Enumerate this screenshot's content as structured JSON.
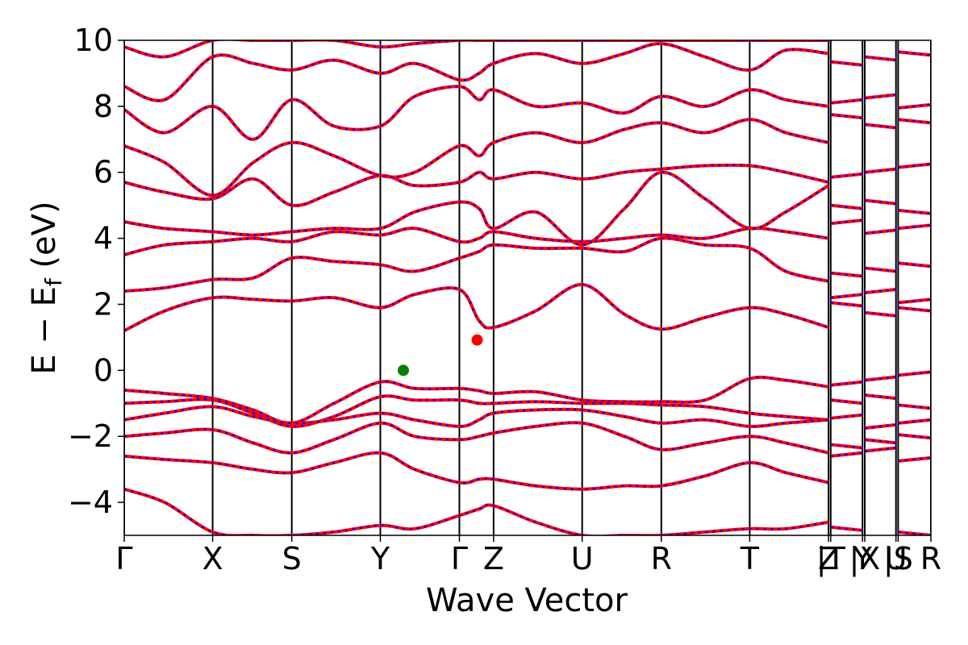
{
  "chart_data": {
    "type": "line",
    "xlabel": "Wave Vector",
    "ylabel": {
      "main": "E − E",
      "sub": "f",
      "unit": " (eV)"
    },
    "ylim": [
      -5,
      10
    ],
    "y_ticks": [
      10,
      8,
      6,
      4,
      2,
      0,
      -2,
      -4
    ],
    "y_tick_labels": [
      "10",
      "8",
      "6",
      "4",
      "2",
      "0",
      "−2",
      "−4"
    ],
    "x_range": [
      0,
      1
    ],
    "kpoints": [
      {
        "label": "Γ",
        "x": 0.0
      },
      {
        "label": "X",
        "x": 0.1096
      },
      {
        "label": "S",
        "x": 0.2077
      },
      {
        "label": "Y",
        "x": 0.3175
      },
      {
        "label": "Γ",
        "x": 0.4155
      },
      {
        "label": "Z",
        "x": 0.4579
      },
      {
        "label": "U",
        "x": 0.5677
      },
      {
        "label": "R",
        "x": 0.6658
      },
      {
        "label": "T",
        "x": 0.7754
      },
      {
        "label": "Z",
        "x": 0.8731
      },
      {
        "label": "|T",
        "x": 0.8758
      },
      {
        "label": "Y",
        "x": 0.9152
      },
      {
        "label": "|X",
        "x": 0.918
      },
      {
        "label": "U",
        "x": 0.9567
      },
      {
        "label": "|S",
        "x": 0.9594
      },
      {
        "label": "R",
        "x": 1.0
      }
    ],
    "segment_breaks": [
      0.8758,
      0.918,
      0.9594
    ],
    "series_style": [
      {
        "color": "#ff0000",
        "dash": "solid"
      },
      {
        "color": "#0000ff",
        "dash": "dotted"
      }
    ],
    "bands": [
      {
        "x": [
          0,
          0.05,
          0.1096,
          0.16,
          0.2077,
          0.26,
          0.3175,
          0.36,
          0.4155,
          0.44,
          0.4579,
          0.51,
          0.5677,
          0.62,
          0.6658,
          0.72,
          0.7754,
          0.82,
          0.8731
        ],
        "y": [
          -0.6,
          -0.7,
          -0.85,
          -1.2,
          -1.6,
          -1.0,
          -0.35,
          -0.55,
          -0.55,
          -0.62,
          -0.7,
          -0.65,
          -0.9,
          -0.95,
          -0.95,
          -0.9,
          -0.25,
          -0.3,
          -0.5
        ]
      },
      {
        "x": [
          0,
          0.05,
          0.1096,
          0.16,
          0.2077,
          0.26,
          0.3175,
          0.36,
          0.4155,
          0.44,
          0.4579,
          0.51,
          0.5677,
          0.62,
          0.6658,
          0.72,
          0.7754,
          0.82,
          0.8731
        ],
        "y": [
          -1.0,
          -0.95,
          -0.9,
          -1.3,
          -1.7,
          -1.4,
          -0.8,
          -0.9,
          -0.9,
          -1.0,
          -1.0,
          -0.95,
          -1.0,
          -1.0,
          -1.05,
          -1.1,
          -1.3,
          -1.4,
          -1.5
        ]
      },
      {
        "x": [
          0,
          0.05,
          0.1096,
          0.16,
          0.2077,
          0.26,
          0.3175,
          0.36,
          0.4155,
          0.44,
          0.4579,
          0.51,
          0.5677,
          0.62,
          0.6658,
          0.72,
          0.7754,
          0.82,
          0.8731
        ],
        "y": [
          -1.5,
          -1.3,
          -1.1,
          -1.4,
          -1.6,
          -1.5,
          -1.3,
          -1.5,
          -1.7,
          -1.5,
          -1.3,
          -1.2,
          -1.2,
          -1.4,
          -1.6,
          -1.5,
          -1.7,
          -1.6,
          -1.5
        ]
      },
      {
        "x": [
          0,
          0.05,
          0.1096,
          0.16,
          0.2077,
          0.26,
          0.3175,
          0.36,
          0.4155,
          0.44,
          0.4579,
          0.51,
          0.5677,
          0.62,
          0.6658,
          0.72,
          0.7754,
          0.82,
          0.8731
        ],
        "y": [
          -2.0,
          -1.9,
          -1.8,
          -2.2,
          -2.5,
          -2.1,
          -1.6,
          -2.0,
          -2.1,
          -2.0,
          -1.9,
          -1.7,
          -1.6,
          -2.0,
          -2.4,
          -2.2,
          -2.0,
          -2.2,
          -2.5
        ]
      },
      {
        "x": [
          0,
          0.05,
          0.1096,
          0.16,
          0.2077,
          0.26,
          0.3175,
          0.36,
          0.4155,
          0.44,
          0.4579,
          0.51,
          0.5677,
          0.62,
          0.6658,
          0.72,
          0.7754,
          0.82,
          0.8731
        ],
        "y": [
          -2.6,
          -2.7,
          -2.8,
          -3.0,
          -3.1,
          -2.8,
          -2.5,
          -3.0,
          -3.4,
          -3.3,
          -3.3,
          -3.5,
          -3.6,
          -3.5,
          -3.5,
          -3.2,
          -2.8,
          -3.1,
          -3.4
        ]
      },
      {
        "x": [
          0,
          0.05,
          0.1096,
          0.16,
          0.2077,
          0.26,
          0.3175,
          0.36,
          0.4155,
          0.44,
          0.4579,
          0.51,
          0.5677,
          0.62,
          0.6658,
          0.72,
          0.7754,
          0.82,
          0.8731
        ],
        "y": [
          -3.6,
          -4.0,
          -4.9,
          -5.0,
          -5.0,
          -4.9,
          -4.7,
          -4.8,
          -4.4,
          -4.2,
          -4.1,
          -4.6,
          -5.0,
          -5.0,
          -5.0,
          -4.9,
          -4.8,
          -4.8,
          -4.6
        ]
      },
      {
        "x": [
          0,
          0.05,
          0.1096,
          0.16,
          0.2077,
          0.26,
          0.3175,
          0.36,
          0.4155,
          0.44,
          0.4579,
          0.51,
          0.5677,
          0.62,
          0.6658,
          0.72,
          0.7754,
          0.82,
          0.8731
        ],
        "y": [
          1.2,
          1.8,
          2.2,
          2.15,
          2.1,
          2.2,
          1.9,
          2.3,
          2.45,
          1.5,
          1.3,
          1.8,
          2.6,
          1.7,
          1.25,
          1.6,
          1.9,
          1.7,
          1.3
        ]
      },
      {
        "x": [
          0,
          0.05,
          0.1096,
          0.16,
          0.2077,
          0.26,
          0.3175,
          0.36,
          0.4155,
          0.44,
          0.4579,
          0.51,
          0.5677,
          0.62,
          0.6658,
          0.72,
          0.7754,
          0.82,
          0.8731
        ],
        "y": [
          2.4,
          2.5,
          2.75,
          2.8,
          3.4,
          3.3,
          3.2,
          3.0,
          3.4,
          3.6,
          3.8,
          3.7,
          3.7,
          3.6,
          4.0,
          3.8,
          3.7,
          3.0,
          2.7
        ]
      },
      {
        "x": [
          0,
          0.05,
          0.1096,
          0.16,
          0.2077,
          0.26,
          0.3175,
          0.36,
          0.4155,
          0.44,
          0.4579,
          0.51,
          0.5677,
          0.62,
          0.6658,
          0.72,
          0.7754,
          0.82,
          0.8731
        ],
        "y": [
          3.5,
          3.8,
          3.9,
          4.0,
          3.9,
          4.2,
          4.1,
          4.3,
          3.9,
          4.0,
          4.2,
          4.0,
          3.9,
          4.0,
          4.1,
          4.0,
          4.3,
          4.2,
          4.0
        ]
      },
      {
        "x": [
          0,
          0.05,
          0.1096,
          0.16,
          0.2077,
          0.26,
          0.3175,
          0.36,
          0.4155,
          0.44,
          0.4579,
          0.51,
          0.5677,
          0.62,
          0.6658,
          0.72,
          0.7754,
          0.82,
          0.8731
        ],
        "y": [
          4.5,
          4.3,
          4.2,
          4.1,
          4.2,
          4.3,
          4.3,
          4.8,
          5.1,
          4.9,
          4.3,
          4.8,
          3.8,
          4.9,
          6.0,
          5.2,
          4.3,
          4.8,
          5.6
        ]
      },
      {
        "x": [
          0,
          0.05,
          0.1096,
          0.16,
          0.2077,
          0.26,
          0.3175,
          0.36,
          0.4155,
          0.44,
          0.4579,
          0.51,
          0.5677,
          0.62,
          0.6658,
          0.72,
          0.7754,
          0.82,
          0.8731
        ],
        "y": [
          5.7,
          5.4,
          5.2,
          5.8,
          5.0,
          5.4,
          5.9,
          5.6,
          5.7,
          6.0,
          5.8,
          6.0,
          5.8,
          6.0,
          6.1,
          6.2,
          6.2,
          6.0,
          5.7
        ]
      },
      {
        "x": [
          0,
          0.05,
          0.1096,
          0.16,
          0.2077,
          0.26,
          0.3175,
          0.36,
          0.4155,
          0.44,
          0.4579,
          0.51,
          0.5677,
          0.62,
          0.6658,
          0.72,
          0.7754,
          0.82,
          0.8731
        ],
        "y": [
          6.8,
          6.3,
          5.3,
          6.3,
          6.9,
          6.5,
          5.9,
          6.0,
          6.8,
          6.5,
          6.9,
          7.2,
          6.9,
          7.3,
          7.5,
          7.2,
          7.6,
          7.2,
          6.9
        ]
      },
      {
        "x": [
          0,
          0.05,
          0.1096,
          0.16,
          0.2077,
          0.26,
          0.3175,
          0.36,
          0.4155,
          0.44,
          0.4579,
          0.51,
          0.5677,
          0.62,
          0.6658,
          0.72,
          0.7754,
          0.82,
          0.8731
        ],
        "y": [
          7.9,
          7.2,
          8.0,
          7.0,
          8.2,
          7.4,
          7.4,
          8.3,
          8.6,
          8.2,
          8.5,
          8.0,
          8.1,
          7.8,
          8.3,
          8.0,
          8.5,
          8.2,
          8.0
        ]
      },
      {
        "x": [
          0,
          0.05,
          0.1096,
          0.16,
          0.2077,
          0.26,
          0.3175,
          0.36,
          0.4155,
          0.44,
          0.4579,
          0.51,
          0.5677,
          0.62,
          0.6658,
          0.72,
          0.7754,
          0.82,
          0.8731
        ],
        "y": [
          8.6,
          8.2,
          9.5,
          9.3,
          9.1,
          9.4,
          9.0,
          9.3,
          8.8,
          9.0,
          9.3,
          9.6,
          9.3,
          9.6,
          9.9,
          9.5,
          9.1,
          9.7,
          9.6
        ]
      },
      {
        "x": [
          0,
          0.05,
          0.1096,
          0.16,
          0.2077,
          0.26,
          0.3175,
          0.36,
          0.4155,
          0.44,
          0.4579,
          0.51,
          0.5677,
          0.62,
          0.6658,
          0.72,
          0.7754,
          0.82,
          0.8731
        ],
        "y": [
          9.8,
          9.5,
          10.0,
          10.0,
          10.0,
          10.0,
          9.8,
          9.9,
          10.0,
          10.0,
          10.0,
          10.0,
          10.0,
          10.0,
          10.0,
          10.0,
          10.0,
          10.0,
          10.0
        ]
      }
    ],
    "markers": [
      {
        "x": 0.346,
        "y": 0.0,
        "color": "#008000"
      },
      {
        "x": 0.4375,
        "y": 0.92,
        "color": "#ff0000"
      }
    ]
  }
}
